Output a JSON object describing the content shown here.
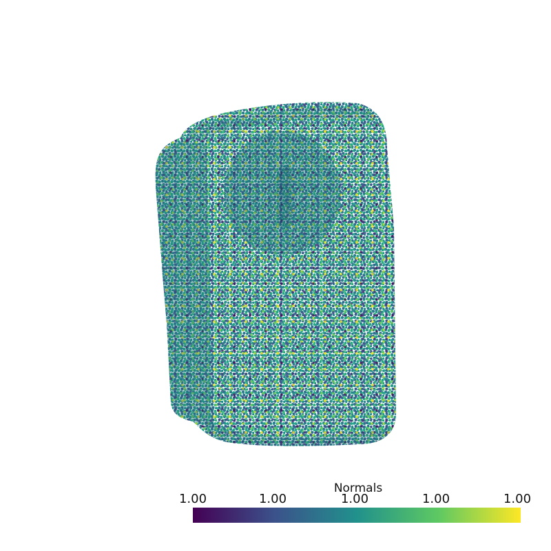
{
  "scalar_bar": {
    "title": "Normals",
    "tick_labels": [
      "1.00",
      "1.00",
      "1.00",
      "1.00",
      "1.00"
    ],
    "colormap": "viridis",
    "colormap_stops": [
      "#440154",
      "#3b528b",
      "#21918c",
      "#5ec962",
      "#fde725"
    ]
  },
  "background_color": "#ffffff"
}
